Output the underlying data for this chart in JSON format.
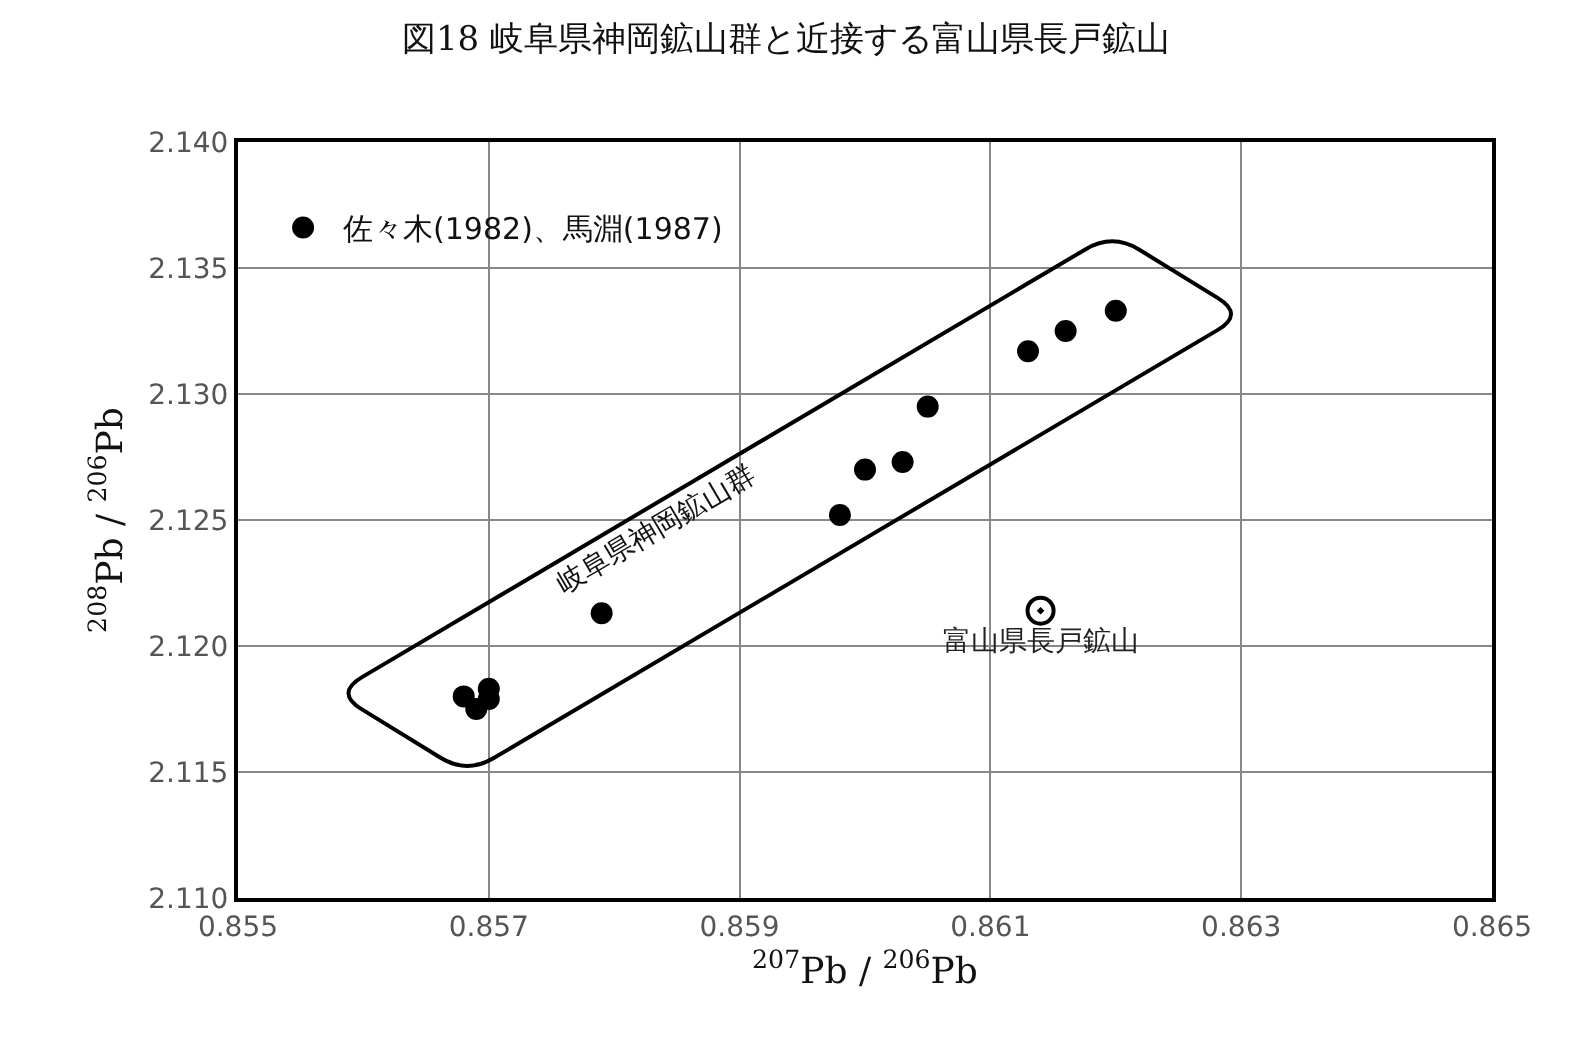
{
  "chart_data": {
    "type": "scatter",
    "title": "図18 岐阜県神岡鉱山群と近接する富山県長戸鉱山",
    "xlabel": "$^{207}$Pb / $^{206}$Pb",
    "ylabel": "$^{208}$Pb / $^{206}$Pb",
    "series": [
      {
        "name": "佐々木(1982)、馬淵(1987)",
        "color": "#000000",
        "x": [
          0.8568,
          0.8569,
          0.857,
          0.857,
          0.8579,
          0.8598,
          0.86,
          0.8603,
          0.8605,
          0.8613,
          0.8616,
          0.862
        ],
        "values": [
          2.118,
          2.1175,
          2.1183,
          2.1179,
          2.1213,
          2.1252,
          2.127,
          2.1273,
          2.1295,
          2.1317,
          2.1325,
          2.1333
        ]
      },
      {
        "name": "富山県長戸鉱山",
        "color": "#000000",
        "x": [
          0.8614
        ],
        "values": [
          2.1214
        ]
      }
    ],
    "annotations": [
      "岐阜県神岡鉱山群"
    ],
    "xlim": [
      0.855,
      0.865
    ],
    "xticks": [
      0.855,
      0.857,
      0.859,
      0.861,
      0.863,
      0.865
    ],
    "ylim": [
      2.11,
      2.14
    ],
    "yticks": [
      {
        "value": 2.11,
        "label": "2.110"
      },
      {
        "value": 2.115,
        "label": "2.115"
      },
      {
        "value": 2.12,
        "label": "2.120"
      },
      {
        "value": 2.125,
        "label": "2.125"
      },
      {
        "value": 2.13,
        "label": "2.130"
      },
      {
        "value": 2.135,
        "label": "2.135"
      },
      {
        "value": 2.14,
        "label": "2.140"
      }
    ],
    "grid": true,
    "legend": "top left",
    "marker": "circle"
  }
}
